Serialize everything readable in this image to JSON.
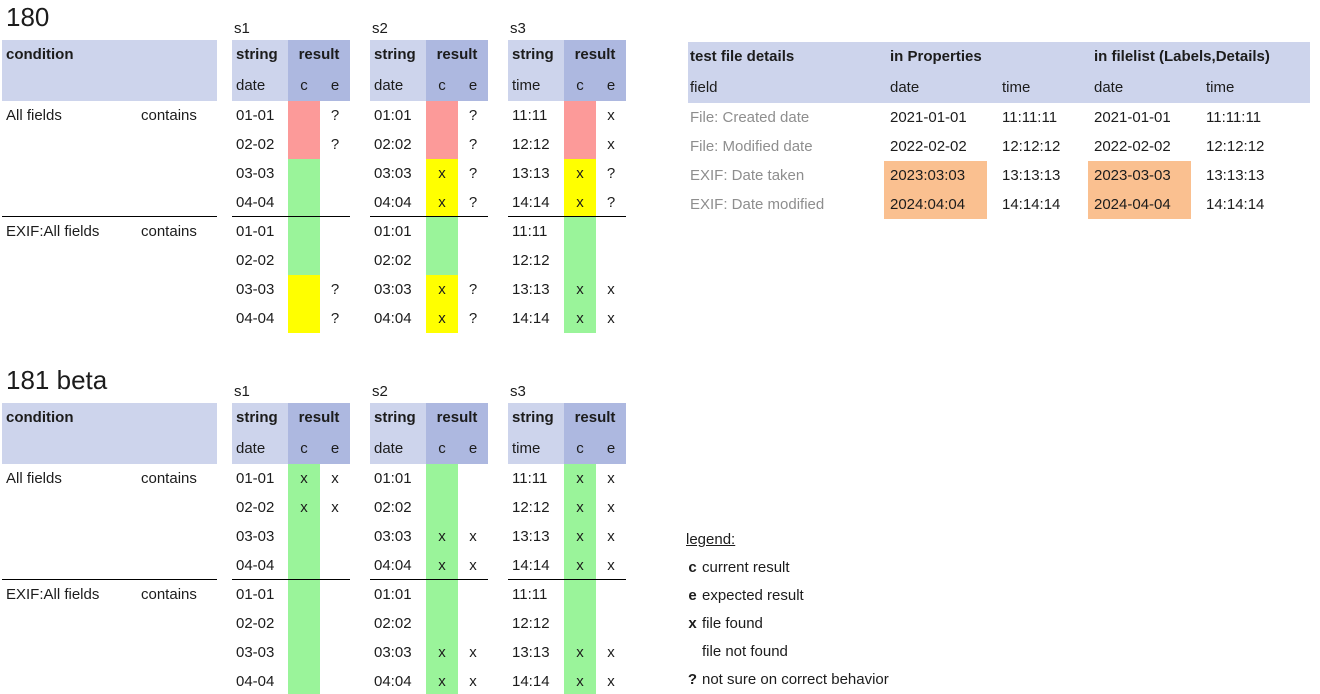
{
  "colors": {
    "header_light": "#cdd4ec",
    "header_dark": "#adb8e0",
    "red": "#fc9a99",
    "green": "#9af49a",
    "yellow": "#ffff00",
    "orange": "#fac090",
    "gray_text": "#8e8e8e"
  },
  "left_headers": {
    "condition": "condition",
    "string": "string",
    "result": "result",
    "c": "c",
    "e": "e"
  },
  "sections": [
    {
      "title": "180",
      "blocks": [
        {
          "label": "s1",
          "sub": "date"
        },
        {
          "label": "s2",
          "sub": "date"
        },
        {
          "label": "s3",
          "sub": "time"
        }
      ],
      "groups": [
        {
          "condition": "All fields",
          "operator": "contains",
          "rows": [
            {
              "cells": [
                {
                  "v": "01-01",
                  "bg": "red",
                  "c": "",
                  "e": "?"
                },
                {
                  "v": "01:01",
                  "bg": "red",
                  "c": "",
                  "e": "?"
                },
                {
                  "v": "11:11",
                  "bg": "red",
                  "c": "",
                  "e": "x"
                }
              ]
            },
            {
              "cells": [
                {
                  "v": "02-02",
                  "bg": "red",
                  "c": "",
                  "e": "?"
                },
                {
                  "v": "02:02",
                  "bg": "red",
                  "c": "",
                  "e": "?"
                },
                {
                  "v": "12:12",
                  "bg": "red",
                  "c": "",
                  "e": "x"
                }
              ]
            },
            {
              "cells": [
                {
                  "v": "03-03",
                  "bg": "green",
                  "c": "",
                  "e": ""
                },
                {
                  "v": "03:03",
                  "bg": "yellow",
                  "c": "x",
                  "e": "?"
                },
                {
                  "v": "13:13",
                  "bg": "yellow",
                  "c": "x",
                  "e": "?"
                }
              ]
            },
            {
              "cells": [
                {
                  "v": "04-04",
                  "bg": "green",
                  "c": "",
                  "e": ""
                },
                {
                  "v": "04:04",
                  "bg": "yellow",
                  "c": "x",
                  "e": "?"
                },
                {
                  "v": "14:14",
                  "bg": "yellow",
                  "c": "x",
                  "e": "?"
                }
              ]
            }
          ]
        },
        {
          "condition": "EXIF:All fields",
          "operator": "contains",
          "rows": [
            {
              "cells": [
                {
                  "v": "01-01",
                  "bg": "green",
                  "c": "",
                  "e": ""
                },
                {
                  "v": "01:01",
                  "bg": "green",
                  "c": "",
                  "e": ""
                },
                {
                  "v": "11:11",
                  "bg": "green",
                  "c": "",
                  "e": ""
                }
              ]
            },
            {
              "cells": [
                {
                  "v": "02-02",
                  "bg": "green",
                  "c": "",
                  "e": ""
                },
                {
                  "v": "02:02",
                  "bg": "green",
                  "c": "",
                  "e": ""
                },
                {
                  "v": "12:12",
                  "bg": "green",
                  "c": "",
                  "e": ""
                }
              ]
            },
            {
              "cells": [
                {
                  "v": "03-03",
                  "bg": "yellow",
                  "c": "",
                  "e": "?"
                },
                {
                  "v": "03:03",
                  "bg": "yellow",
                  "c": "x",
                  "e": "?"
                },
                {
                  "v": "13:13",
                  "bg": "green",
                  "c": "x",
                  "e": "x"
                }
              ]
            },
            {
              "cells": [
                {
                  "v": "04-04",
                  "bg": "yellow",
                  "c": "",
                  "e": "?"
                },
                {
                  "v": "04:04",
                  "bg": "yellow",
                  "c": "x",
                  "e": "?"
                },
                {
                  "v": "14:14",
                  "bg": "green",
                  "c": "x",
                  "e": "x"
                }
              ]
            }
          ]
        }
      ]
    },
    {
      "title": "181 beta",
      "blocks": [
        {
          "label": "s1",
          "sub": "date"
        },
        {
          "label": "s2",
          "sub": "date"
        },
        {
          "label": "s3",
          "sub": "time"
        }
      ],
      "groups": [
        {
          "condition": "All fields",
          "operator": "contains",
          "rows": [
            {
              "cells": [
                {
                  "v": "01-01",
                  "bg": "green",
                  "c": "x",
                  "e": "x"
                },
                {
                  "v": "01:01",
                  "bg": "green",
                  "c": "",
                  "e": ""
                },
                {
                  "v": "11:11",
                  "bg": "green",
                  "c": "x",
                  "e": "x"
                }
              ]
            },
            {
              "cells": [
                {
                  "v": "02-02",
                  "bg": "green",
                  "c": "x",
                  "e": "x"
                },
                {
                  "v": "02:02",
                  "bg": "green",
                  "c": "",
                  "e": ""
                },
                {
                  "v": "12:12",
                  "bg": "green",
                  "c": "x",
                  "e": "x"
                }
              ]
            },
            {
              "cells": [
                {
                  "v": "03-03",
                  "bg": "green",
                  "c": "",
                  "e": ""
                },
                {
                  "v": "03:03",
                  "bg": "green",
                  "c": "x",
                  "e": "x"
                },
                {
                  "v": "13:13",
                  "bg": "green",
                  "c": "x",
                  "e": "x"
                }
              ]
            },
            {
              "cells": [
                {
                  "v": "04-04",
                  "bg": "green",
                  "c": "",
                  "e": ""
                },
                {
                  "v": "04:04",
                  "bg": "green",
                  "c": "x",
                  "e": "x"
                },
                {
                  "v": "14:14",
                  "bg": "green",
                  "c": "x",
                  "e": "x"
                }
              ]
            }
          ]
        },
        {
          "condition": "EXIF:All fields",
          "operator": "contains",
          "rows": [
            {
              "cells": [
                {
                  "v": "01-01",
                  "bg": "green",
                  "c": "",
                  "e": ""
                },
                {
                  "v": "01:01",
                  "bg": "green",
                  "c": "",
                  "e": ""
                },
                {
                  "v": "11:11",
                  "bg": "green",
                  "c": "",
                  "e": ""
                }
              ]
            },
            {
              "cells": [
                {
                  "v": "02-02",
                  "bg": "green",
                  "c": "",
                  "e": ""
                },
                {
                  "v": "02:02",
                  "bg": "green",
                  "c": "",
                  "e": ""
                },
                {
                  "v": "12:12",
                  "bg": "green",
                  "c": "",
                  "e": ""
                }
              ]
            },
            {
              "cells": [
                {
                  "v": "03-03",
                  "bg": "green",
                  "c": "",
                  "e": ""
                },
                {
                  "v": "03:03",
                  "bg": "green",
                  "c": "x",
                  "e": "x"
                },
                {
                  "v": "13:13",
                  "bg": "green",
                  "c": "x",
                  "e": "x"
                }
              ]
            },
            {
              "cells": [
                {
                  "v": "04-04",
                  "bg": "green",
                  "c": "",
                  "e": ""
                },
                {
                  "v": "04:04",
                  "bg": "green",
                  "c": "x",
                  "e": "x"
                },
                {
                  "v": "14:14",
                  "bg": "green",
                  "c": "x",
                  "e": "x"
                }
              ]
            }
          ]
        }
      ]
    }
  ],
  "file_details": {
    "headers": {
      "title": "test file details",
      "properties": "in Properties",
      "filelist": "in filelist (Labels,Details)",
      "field": "field",
      "date": "date",
      "time": "time"
    },
    "rows": [
      {
        "field": "File: Created date",
        "prop_date": "2021-01-01",
        "prop_time": "11:11:11",
        "list_date": "2021-01-01",
        "list_time": "11:11:11",
        "highlight": false
      },
      {
        "field": "File: Modified date",
        "prop_date": "2022-02-02",
        "prop_time": "12:12:12",
        "list_date": "2022-02-02",
        "list_time": "12:12:12",
        "highlight": false
      },
      {
        "field": "EXIF: Date taken",
        "prop_date": "2023:03:03",
        "prop_time": "13:13:13",
        "list_date": "2023-03-03",
        "list_time": "13:13:13",
        "highlight": true
      },
      {
        "field": "EXIF: Date modified",
        "prop_date": "2024:04:04",
        "prop_time": "14:14:14",
        "list_date": "2024-04-04",
        "list_time": "14:14:14",
        "highlight": true
      }
    ]
  },
  "legend": {
    "title": "legend:",
    "items": [
      {
        "marker": "c",
        "text": "current result"
      },
      {
        "marker": "e",
        "text": "expected result"
      },
      {
        "marker": "x",
        "text": "file found"
      },
      {
        "marker": "",
        "text": "file not found"
      },
      {
        "marker": "?",
        "text": "not sure on correct behavior"
      }
    ]
  }
}
